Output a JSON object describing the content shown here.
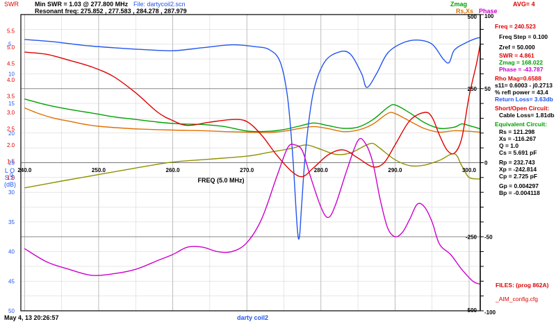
{
  "header": {
    "swr_axis_label": "SWR",
    "min_swr": "Min SWR =   1.03 @  277.800 MHz",
    "file": "File: dartycoil2.scn",
    "resonant_freq": "Resonant freq:  275.852 , 277.583 , 284.278 , 287.979",
    "legend_zmag": "Zmag",
    "legend_rsxs": "Rs,Xs",
    "legend_phase": "Phase",
    "avg": "AVG=  4"
  },
  "footer": {
    "timestamp": "May 4, 13  20:26:57",
    "scan_name": "darty coil2"
  },
  "right_panel": {
    "freq": "Freq = 240.523",
    "freq_step": "Freq Step = 0.100",
    "zref": "Zref =   50.000",
    "swr": "SWR  =   4.861",
    "zmag": "Zmag  =  168.022",
    "phase": "Phase =  -43.787",
    "rho_mag": "Rho Mag=0.6588",
    "s11": "s11= 0.6003 - j0.2713",
    "refl_power": "% refl power = 43.4",
    "return_loss": "Return Loss= 3.63db",
    "short_open": "Short/Open Circuit:",
    "cable_loss": "Cable Loss=  1.81db",
    "equiv_circuit": "Equivalent Circuit:",
    "rs": "Rs  =  121.298",
    "xs": "Xs  = -116.267",
    "q": "Q  =  1.0",
    "cs": "Cs  =    5.691  pF",
    "rp": "Rp  =  232.743",
    "xp": "Xp  = -242.814",
    "cp": "Cp  =    2.725  pF",
    "gp": "Gp  =  0.004297",
    "bp": "Bp  = -0.004118",
    "files": "FILES:  (prog 862A)",
    "config": "_AIM_config.cfg"
  },
  "colors": {
    "swr": "#e00000",
    "zmag": "#00a000",
    "rsxs": "#e07000",
    "phase": "#cc00cc",
    "loss": "#2255ee",
    "reactance": "#909000",
    "black": "#000000",
    "grid": "#a0a0a0"
  },
  "chart_data": {
    "type": "line",
    "x_axis_label": "FREQ (5.0 MHz)",
    "x_range": [
      239.5,
      301.5
    ],
    "x_ticks": [
      "240.0",
      "250.0",
      "260.0",
      "270.0",
      "280.0",
      "290.0",
      "300.0"
    ],
    "left_axes": {
      "swr_range": [
        1.0,
        6.0
      ],
      "swr_ticks": [
        "5.5",
        "5.0",
        "4.5",
        "4.0",
        "3.5",
        "3.0",
        "2.5",
        "2.0",
        "1.5",
        "1.0"
      ],
      "loss_label": "L O S S (dB)",
      "loss_range": [
        0,
        50
      ],
      "loss_ticks": [
        "0",
        "5",
        "10",
        "15",
        "20",
        "25",
        "30",
        "35",
        "40",
        "45",
        "50"
      ]
    },
    "right_axes": {
      "z_ticks": [
        "500",
        "250",
        "0",
        "-250",
        "-500"
      ],
      "phase_ticks": [
        "100",
        "50",
        "0",
        "-50",
        "-100"
      ],
      "z_range": [
        -500,
        500
      ],
      "phase_range": [
        -100,
        100
      ]
    },
    "series": [
      {
        "name": "SWR",
        "axis": "swr",
        "points": [
          [
            240,
            4.85
          ],
          [
            243,
            4.78
          ],
          [
            246,
            4.6
          ],
          [
            249,
            4.4
          ],
          [
            252,
            4.1
          ],
          [
            255,
            3.6
          ],
          [
            258,
            3.0
          ],
          [
            260,
            2.75
          ],
          [
            262,
            2.6
          ],
          [
            265,
            2.7
          ],
          [
            268,
            2.78
          ],
          [
            270,
            2.72
          ],
          [
            272,
            2.3
          ],
          [
            274,
            1.7
          ],
          [
            276,
            1.2
          ],
          [
            277.5,
            1.03
          ],
          [
            279,
            1.3
          ],
          [
            281,
            1.7
          ],
          [
            283,
            1.85
          ],
          [
            285,
            1.6
          ],
          [
            287,
            1.33
          ],
          [
            288.5,
            1.45
          ],
          [
            290,
            2.0
          ],
          [
            292,
            2.75
          ],
          [
            294,
            3.0
          ],
          [
            295,
            2.85
          ],
          [
            296,
            2.3
          ],
          [
            297,
            1.85
          ],
          [
            298,
            1.75
          ],
          [
            299,
            2.2
          ],
          [
            300,
            3.5
          ],
          [
            301,
            4.5
          ],
          [
            301.6,
            5.1
          ]
        ]
      },
      {
        "name": "Zmag",
        "axis": "z",
        "points": [
          [
            240,
            215
          ],
          [
            243,
            195
          ],
          [
            246,
            180
          ],
          [
            249,
            168
          ],
          [
            252,
            155
          ],
          [
            255,
            146
          ],
          [
            258,
            137
          ],
          [
            261,
            131
          ],
          [
            264,
            129
          ],
          [
            267,
            122
          ],
          [
            270,
            107
          ],
          [
            273,
            106
          ],
          [
            275,
            112
          ],
          [
            277,
            123
          ],
          [
            279,
            134
          ],
          [
            281,
            125
          ],
          [
            283,
            116
          ],
          [
            285,
            120
          ],
          [
            287,
            145
          ],
          [
            289,
            186
          ],
          [
            290,
            195
          ],
          [
            292,
            168
          ],
          [
            294,
            135
          ],
          [
            296,
            116
          ],
          [
            298,
            120
          ],
          [
            299,
            131
          ],
          [
            300,
            125
          ],
          [
            301,
            118
          ],
          [
            301.6,
            114
          ]
        ]
      },
      {
        "name": "Rs",
        "axis": "z",
        "points": [
          [
            240,
            185
          ],
          [
            242,
            165
          ],
          [
            244,
            150
          ],
          [
            246,
            140
          ],
          [
            248,
            130
          ],
          [
            250,
            123
          ],
          [
            253,
            117
          ],
          [
            256,
            113
          ],
          [
            260,
            110
          ],
          [
            264,
            108
          ],
          [
            267,
            105
          ],
          [
            270,
            103
          ],
          [
            273,
            102
          ],
          [
            275,
            106
          ],
          [
            277,
            115
          ],
          [
            279,
            122
          ],
          [
            281,
            115
          ],
          [
            283,
            105
          ],
          [
            285,
            110
          ],
          [
            287,
            130
          ],
          [
            289,
            166
          ],
          [
            290,
            166
          ],
          [
            292,
            140
          ],
          [
            294,
            115
          ],
          [
            296,
            103
          ],
          [
            298,
            108
          ],
          [
            300,
            106
          ],
          [
            301.6,
            103
          ]
        ]
      },
      {
        "name": "Xs",
        "axis": "z",
        "points": [
          [
            240,
            -85
          ],
          [
            245,
            -62
          ],
          [
            250,
            -40
          ],
          [
            255,
            -18
          ],
          [
            260,
            2
          ],
          [
            265,
            12
          ],
          [
            270,
            22
          ],
          [
            273,
            35
          ],
          [
            276,
            48
          ],
          [
            278,
            60
          ],
          [
            280,
            45
          ],
          [
            282,
            28
          ],
          [
            284,
            33
          ],
          [
            286,
            58
          ],
          [
            287,
            65
          ],
          [
            288,
            48
          ],
          [
            290,
            10
          ],
          [
            292,
            -10
          ],
          [
            294,
            -8
          ],
          [
            296,
            8
          ],
          [
            298,
            30
          ],
          [
            299,
            -10
          ],
          [
            300,
            -50
          ],
          [
            301.6,
            -55
          ]
        ]
      },
      {
        "name": "Return Loss",
        "axis": "loss",
        "points": [
          [
            240,
            4.2
          ],
          [
            244,
            4.6
          ],
          [
            248,
            5.2
          ],
          [
            252,
            5.6
          ],
          [
            256,
            5.9
          ],
          [
            260,
            6.1
          ],
          [
            264,
            5.6
          ],
          [
            268,
            5.1
          ],
          [
            271,
            5.4
          ],
          [
            273,
            5.9
          ],
          [
            274.5,
            8
          ],
          [
            275.5,
            14
          ],
          [
            276.2,
            24
          ],
          [
            276.8,
            36
          ],
          [
            277.1,
            37.5
          ],
          [
            277.4,
            32
          ],
          [
            278,
            22
          ],
          [
            279,
            13
          ],
          [
            280.5,
            8
          ],
          [
            282.5,
            6.3
          ],
          [
            284,
            6.7
          ],
          [
            285.5,
            10
          ],
          [
            286.2,
            12.3
          ],
          [
            287.5,
            10
          ],
          [
            289,
            6.5
          ],
          [
            291,
            4.8
          ],
          [
            293,
            4.3
          ],
          [
            295,
            5
          ],
          [
            296.5,
            7.5
          ],
          [
            297.3,
            8.1
          ],
          [
            298,
            6
          ],
          [
            299.5,
            4.8
          ],
          [
            301,
            4
          ],
          [
            301.6,
            3.9
          ]
        ]
      },
      {
        "name": "Phase",
        "axis": "phase",
        "points": [
          [
            240,
            -58
          ],
          [
            243,
            -67
          ],
          [
            246,
            -72
          ],
          [
            249,
            -76
          ],
          [
            252,
            -75
          ],
          [
            255,
            -72
          ],
          [
            258,
            -66
          ],
          [
            260,
            -62
          ],
          [
            262,
            -57
          ],
          [
            264,
            -57
          ],
          [
            266,
            -60
          ],
          [
            268,
            -60
          ],
          [
            270,
            -54
          ],
          [
            272,
            -38
          ],
          [
            274,
            -10
          ],
          [
            275.5,
            10
          ],
          [
            276.5,
            12
          ],
          [
            277.5,
            8
          ],
          [
            278.5,
            -8
          ],
          [
            280,
            -30
          ],
          [
            281,
            -37
          ],
          [
            282,
            -28
          ],
          [
            283.5,
            -5
          ],
          [
            285,
            15
          ],
          [
            286,
            13
          ],
          [
            287,
            0
          ],
          [
            288,
            -25
          ],
          [
            289,
            -44
          ],
          [
            290,
            -50
          ],
          [
            291,
            -47
          ],
          [
            292,
            -38
          ],
          [
            293,
            -28
          ],
          [
            294,
            -30
          ],
          [
            295,
            -40
          ],
          [
            296,
            -55
          ],
          [
            297.5,
            -62
          ],
          [
            299,
            -72
          ],
          [
            300.5,
            -80
          ],
          [
            301.6,
            -82
          ]
        ]
      }
    ]
  }
}
